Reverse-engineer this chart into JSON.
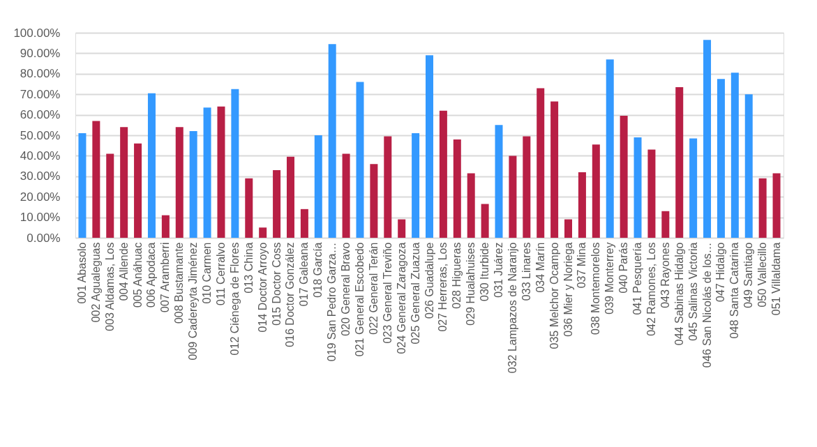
{
  "chart_data": {
    "type": "bar",
    "categories": [
      "001 Abasolo",
      "002 Agualeguas",
      "003 Aldamas, Los",
      "004 Allende",
      "005 Anáhuac",
      "006 Apodaca",
      "007 Aramberri",
      "008 Bustamante",
      "009 Cadereyta Jiménez",
      "010 Carmen",
      "011 Cerralvo",
      "012 Ciénega de Flores",
      "013 China",
      "014 Doctor Arroyo",
      "015 Doctor Coss",
      "016 Doctor González",
      "017 Galeana",
      "018 García",
      "019 San Pedro Garza…",
      "020 General Bravo",
      "021 General Escobedo",
      "022 General Terán",
      "023 General Treviño",
      "024 General Zaragoza",
      "025 General Zuazua",
      "026 Guadalupe",
      "027 Herreras, Los",
      "028 Higueras",
      "029 Hualahuises",
      "030 Iturbide",
      "031 Juárez",
      "032 Lampazos de Naranjo",
      "033 Linares",
      "034 Marín",
      "035 Melchor Ocampo",
      "036 Mier y Noriega",
      "037 Mina",
      "038 Montemorelos",
      "039 Monterrey",
      "040 Parás",
      "041 Pesquería",
      "042 Ramones, Los",
      "043 Rayones",
      "044 Sabinas Hidalgo",
      "045 Salinas Victoria",
      "046 San Nicolás de los…",
      "047 Hidalgo",
      "048 Santa Catarina",
      "049 Santiago",
      "050 Vallecillo",
      "051 Villaldama"
    ],
    "values": [
      51,
      57,
      41,
      54,
      46,
      70.5,
      11,
      54,
      52,
      63.5,
      64,
      72.5,
      29,
      5,
      33,
      39.5,
      14,
      50,
      94.5,
      41,
      76,
      36,
      49.5,
      9,
      51,
      89,
      62,
      48,
      31.5,
      16.5,
      55,
      40,
      49.5,
      73,
      66.5,
      9,
      32,
      45.5,
      87,
      59.5,
      49,
      43,
      13,
      73.5,
      48.5,
      96.5,
      77.5,
      80.5,
      70,
      29,
      31.5
    ],
    "colors": [
      "#3399ff",
      "#b81f45",
      "#b81f45",
      "#b81f45",
      "#b81f45",
      "#3399ff",
      "#b81f45",
      "#b81f45",
      "#3399ff",
      "#3399ff",
      "#b81f45",
      "#3399ff",
      "#b81f45",
      "#b81f45",
      "#b81f45",
      "#b81f45",
      "#b81f45",
      "#3399ff",
      "#3399ff",
      "#b81f45",
      "#3399ff",
      "#b81f45",
      "#b81f45",
      "#b81f45",
      "#3399ff",
      "#3399ff",
      "#b81f45",
      "#b81f45",
      "#b81f45",
      "#b81f45",
      "#3399ff",
      "#b81f45",
      "#b81f45",
      "#b81f45",
      "#b81f45",
      "#b81f45",
      "#b81f45",
      "#b81f45",
      "#3399ff",
      "#b81f45",
      "#3399ff",
      "#b81f45",
      "#b81f45",
      "#b81f45",
      "#3399ff",
      "#3399ff",
      "#3399ff",
      "#3399ff",
      "#3399ff",
      "#b81f45",
      "#b81f45"
    ],
    "ylim": [
      0,
      100
    ],
    "yticks": [
      {
        "value": 0,
        "label": "0.00%"
      },
      {
        "value": 10,
        "label": "10.00%"
      },
      {
        "value": 20,
        "label": "20.00%"
      },
      {
        "value": 30,
        "label": "30.00%"
      },
      {
        "value": 40,
        "label": "40.00%"
      },
      {
        "value": 50,
        "label": "50.00%"
      },
      {
        "value": 60,
        "label": "60.00%"
      },
      {
        "value": 70,
        "label": "70.00%"
      },
      {
        "value": 80,
        "label": "80.00%"
      },
      {
        "value": 90,
        "label": "90.00%"
      },
      {
        "value": 100,
        "label": "100.00%"
      }
    ],
    "grid": "y"
  }
}
